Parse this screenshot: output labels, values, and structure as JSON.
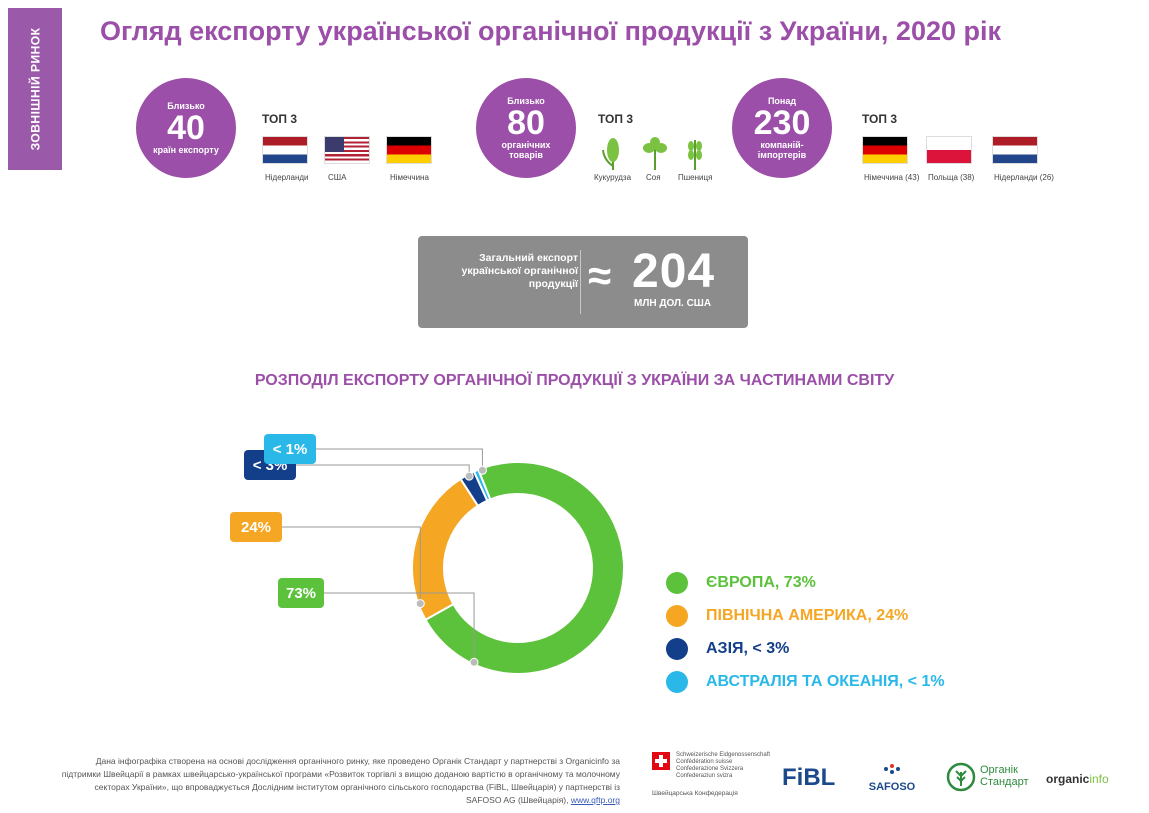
{
  "side_tab": "ЗОВНІШНІЙ РИНОК",
  "title": "Огляд експорту української органічної продукції з України, 2020 рік",
  "stats": [
    {
      "pre": "Близько",
      "number": "40",
      "post": "країн експорту"
    },
    {
      "pre": "Близько",
      "number": "80",
      "post": "органічних товарів"
    },
    {
      "pre": "Понад",
      "number": "230",
      "post": "компаній-імпортерів"
    }
  ],
  "top3_label": "ТОП 3",
  "countries_top": [
    "Нідерланди",
    "США",
    "Німеччина"
  ],
  "products_top": [
    "Кукурудза",
    "Соя",
    "Пшениця"
  ],
  "importers_top": [
    "Німеччина (43)",
    "Польща (38)",
    "Нідерланди (26)"
  ],
  "total": {
    "label": "Загальний експорт української органічної продукції",
    "approx": "≈",
    "value": "204",
    "unit": "МЛН ДОЛ. США"
  },
  "section_title": "РОЗПОДІЛ ЕКСПОРТУ ОРГАНІЧНОЇ ПРОДУКЦІЇ З УКРАЇНИ ЗА ЧАСТИНАМИ СВІТУ",
  "chart_data": {
    "type": "pie",
    "style": "donut",
    "title": "РОЗПОДІЛ ЕКСПОРТУ ОРГАНІЧНОЇ ПРОДУКЦІЇ З УКРАЇНИ ЗА ЧАСТИНАМИ СВІТУ",
    "slices": [
      {
        "label": "ЄВРОПА, 73%",
        "value": 73,
        "display": "73%",
        "color": "#5cc23c"
      },
      {
        "label": "ПІВНІЧНА АМЕРИКА, 24%",
        "value": 24,
        "display": "24%",
        "color": "#f5a623"
      },
      {
        "label": "АЗІЯ, < 3%",
        "value": 2.3,
        "display": "< 3%",
        "color": "#133e8a"
      },
      {
        "label": "АВСТРАЛІЯ ТА ОКЕАНІЯ, < 1%",
        "value": 0.7,
        "display": "< 1%",
        "color": "#29b8e8"
      }
    ],
    "legend_position": "right"
  },
  "footer": {
    "text": "Дана інфографіка створена на основі дослідження органічного ринку, яке проведено Органік Стандарт у партнерстві з Organicinfo за підтримки Швейцарії в рамках швейцарсько-української програми «Розвиток торгівлі з вищою доданою вартістю в органічному та молочному секторах України», що впроваджується Дослідним інститутом органічного сільського господарства (FiBL, Швейцарія) у партнерстві із SAFOSO AG (Швейцарія), ",
    "link": "www.qftp.org",
    "swiss_lines": [
      "Schweizerische Eidgenossenschaft",
      "Confédération suisse",
      "Confederazione Svizzera",
      "Confederaziun svizra"
    ],
    "swiss_sub": "Швейцарська Конфедерація",
    "logos": [
      "FiBL",
      "SAFOSO",
      "Органік",
      "Стандарт",
      "organic",
      "info"
    ]
  }
}
